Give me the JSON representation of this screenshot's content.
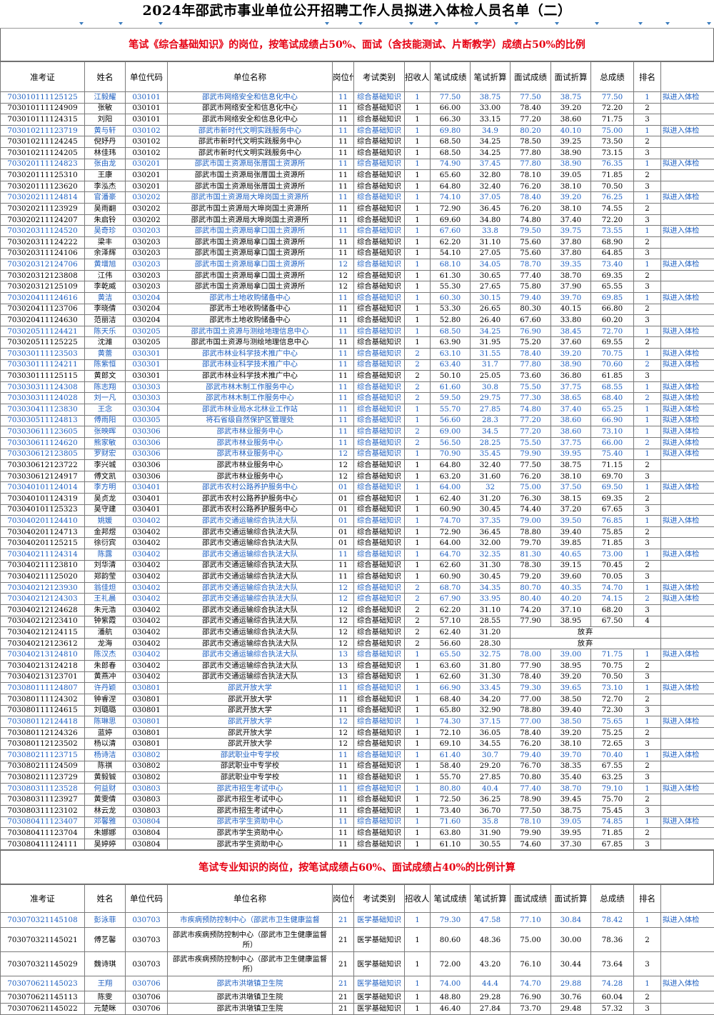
{
  "title": "2024年邵武市事业单位公开招聘工作人员拟进入体检人员名单（二）",
  "section1_note": "笔试《综合基础知识》的岗位，按笔试成绩占50%、面试（含技能测试、片断教学）成绩占50%的比例",
  "section2_note": "笔试专业知识的岗位，按笔试成绩占60%、面试成绩占40%的比例计算",
  "headers": [
    "准考证",
    "姓名",
    "单位代码",
    "单位名称",
    "岗位代码",
    "考试类别",
    "招收人数",
    "笔试成绩",
    "笔试折算",
    "面试成绩",
    "面试折算",
    "总成绩",
    "排名",
    ""
  ],
  "result_label": "拟进入体检",
  "absent_label": "放弃",
  "colors": {
    "highlight": "#1e5fc0",
    "notice": "#e60012",
    "filter_arrow": "#3a7bbd"
  },
  "section1_rows": [
    [
      "703010111125125",
      "江毅耀",
      "030101",
      "邵武市网络安全和信息化中心",
      "11",
      "综合基础知识",
      "1",
      "77.50",
      "38.75",
      "77.50",
      "38.75",
      "77.50",
      "1",
      "拟进入体检"
    ],
    [
      "703010111124909",
      "张敏",
      "030101",
      "邵武市网络安全和信息化中心",
      "11",
      "综合基础知识",
      "1",
      "66.00",
      "33.00",
      "78.40",
      "39.20",
      "72.20",
      "2",
      ""
    ],
    [
      "703010111124315",
      "刘阳",
      "030101",
      "邵武市网络安全和信息化中心",
      "11",
      "综合基础知识",
      "1",
      "66.30",
      "33.15",
      "77.20",
      "38.60",
      "71.75",
      "3",
      ""
    ],
    [
      "703010211123719",
      "黄与轩",
      "030102",
      "邵武市新时代文明实践服务中心",
      "11",
      "综合基础知识",
      "1",
      "69.80",
      "34.9",
      "80.20",
      "40.10",
      "75.00",
      "1",
      "拟进入体检"
    ],
    [
      "703010211124245",
      "倪妤丹",
      "030102",
      "邵武市新时代文明实践服务中心",
      "11",
      "综合基础知识",
      "1",
      "68.50",
      "34.25",
      "78.50",
      "39.25",
      "73.50",
      "2",
      ""
    ],
    [
      "703010211124205",
      "林佳玮",
      "030102",
      "邵武市新时代文明实践服务中心",
      "11",
      "综合基础知识",
      "1",
      "68.50",
      "34.25",
      "77.80",
      "38.90",
      "73.15",
      "3",
      ""
    ],
    [
      "703020111124823",
      "张由龙",
      "030201",
      "邵武市国土资源局张厝国土资源所",
      "11",
      "综合基础知识",
      "1",
      "74.90",
      "37.45",
      "77.80",
      "38.90",
      "76.35",
      "1",
      "拟进入体检"
    ],
    [
      "703020111125310",
      "王康",
      "030201",
      "邵武市国土资源局张厝国土资源所",
      "11",
      "综合基础知识",
      "1",
      "65.60",
      "32.80",
      "78.10",
      "39.05",
      "71.85",
      "2",
      ""
    ],
    [
      "703020111123620",
      "李泓杰",
      "030201",
      "邵武市国土资源局张厝国土资源所",
      "11",
      "综合基础知识",
      "1",
      "64.80",
      "32.40",
      "76.20",
      "38.10",
      "70.50",
      "3",
      ""
    ],
    [
      "703020211124814",
      "官潘豪",
      "030202",
      "邵武市国土资源局大埠岗国土资源所",
      "11",
      "综合基础知识",
      "1",
      "74.10",
      "37.05",
      "78.40",
      "39.20",
      "76.25",
      "1",
      "拟进入体检"
    ],
    [
      "703020211123929",
      "吴雨翻",
      "030202",
      "邵武市国土资源局大埠岗国土资源所",
      "11",
      "综合基础知识",
      "1",
      "72.90",
      "36.45",
      "76.20",
      "38.10",
      "74.55",
      "2",
      ""
    ],
    [
      "703020211124207",
      "朱启铃",
      "030202",
      "邵武市国土资源局大埠岗国土资源所",
      "11",
      "综合基础知识",
      "1",
      "69.60",
      "34.80",
      "74.80",
      "37.40",
      "72.20",
      "3",
      ""
    ],
    [
      "703020311124520",
      "吴奇珍",
      "030203",
      "邵武市国土资源局拿口国土资源所",
      "11",
      "综合基础知识",
      "1",
      "67.60",
      "33.8",
      "79.50",
      "39.75",
      "73.55",
      "1",
      "拟进入体检"
    ],
    [
      "703020311124222",
      "梁丰",
      "030203",
      "邵武市国土资源局拿口国土资源所",
      "11",
      "综合基础知识",
      "1",
      "62.20",
      "31.10",
      "75.60",
      "37.80",
      "68.90",
      "2",
      ""
    ],
    [
      "703020311124106",
      "余泽辉",
      "030203",
      "邵武市国土资源局拿口国土资源所",
      "11",
      "综合基础知识",
      "1",
      "54.10",
      "27.05",
      "75.60",
      "37.80",
      "64.85",
      "3",
      ""
    ],
    [
      "703020312124706",
      "黄增旭",
      "030203",
      "邵武市国土资源局拿口国土资源所",
      "12",
      "综合基础知识",
      "1",
      "68.10",
      "34.05",
      "78.70",
      "39.35",
      "73.40",
      "1",
      "拟进入体检"
    ],
    [
      "703020312123808",
      "江伟",
      "030203",
      "邵武市国土资源局拿口国土资源所",
      "12",
      "综合基础知识",
      "1",
      "61.30",
      "30.65",
      "77.40",
      "38.70",
      "69.35",
      "2",
      ""
    ],
    [
      "703020312125109",
      "李乾威",
      "030203",
      "邵武市国土资源局拿口国土资源所",
      "12",
      "综合基础知识",
      "1",
      "55.30",
      "27.65",
      "75.80",
      "37.90",
      "65.55",
      "3",
      ""
    ],
    [
      "703020411124616",
      "黄洁",
      "030204",
      "邵武市土地收购储备中心",
      "11",
      "综合基础知识",
      "1",
      "60.30",
      "30.15",
      "79.40",
      "39.70",
      "69.85",
      "1",
      "拟进入体检"
    ],
    [
      "703020411123706",
      "李晓倩",
      "030204",
      "邵武市土地收购储备中心",
      "11",
      "综合基础知识",
      "1",
      "53.30",
      "26.65",
      "80.30",
      "40.15",
      "66.80",
      "2",
      ""
    ],
    [
      "703020411124630",
      "范丽洁",
      "030204",
      "邵武市土地收购储备中心",
      "11",
      "综合基础知识",
      "1",
      "52.80",
      "26.40",
      "67.60",
      "33.80",
      "60.20",
      "3",
      ""
    ],
    [
      "703020511124421",
      "陈天乐",
      "030205",
      "邵武市国土资源与测绘地理信息中心",
      "11",
      "综合基础知识",
      "1",
      "68.50",
      "34.25",
      "76.90",
      "38.45",
      "72.70",
      "1",
      "拟进入体检"
    ],
    [
      "703020511125225",
      "沈濰",
      "030205",
      "邵武市国土资源与测绘地理信息中心",
      "11",
      "综合基础知识",
      "1",
      "63.90",
      "31.95",
      "75.20",
      "37.60",
      "69.55",
      "2",
      ""
    ],
    [
      "703030111123503",
      "黄蕾",
      "030301",
      "邵武市林业科学技术推广中心",
      "11",
      "综合基础知识",
      "2",
      "63.10",
      "31.55",
      "78.40",
      "39.20",
      "70.75",
      "1",
      "拟进入体检"
    ],
    [
      "703030111124211",
      "陈紫恒",
      "030301",
      "邵武市林业科学技术推广中心",
      "11",
      "综合基础知识",
      "2",
      "63.40",
      "31.7",
      "77.80",
      "38.90",
      "70.60",
      "2",
      "拟进入体检"
    ],
    [
      "703030111125115",
      "黄郎文",
      "030301",
      "邵武市林业科学技术推广中心",
      "11",
      "综合基础知识",
      "2",
      "50.10",
      "25.05",
      "73.60",
      "36.80",
      "61.85",
      "3",
      ""
    ],
    [
      "703030311124308",
      "陈志翔",
      "030303",
      "邵武市林木制工作服务中心",
      "11",
      "综合基础知识",
      "2",
      "61.60",
      "30.8",
      "75.50",
      "37.75",
      "68.55",
      "1",
      "拟进入体检"
    ],
    [
      "703030311124028",
      "刘一凡",
      "030303",
      "邵武市林木制工作服务中心",
      "11",
      "综合基础知识",
      "2",
      "59.50",
      "29.75",
      "77.30",
      "38.65",
      "68.40",
      "2",
      "拟进入体检"
    ],
    [
      "703030411123830",
      "王念",
      "030304",
      "邵武市林业局水北林业工作站",
      "11",
      "综合基础知识",
      "1",
      "55.70",
      "27.85",
      "74.80",
      "37.40",
      "65.25",
      "1",
      "拟进入体检"
    ],
    [
      "703030511124813",
      "傅雨阳",
      "030305",
      "将石省级自然保护区管理处",
      "11",
      "综合基础知识",
      "1",
      "56.60",
      "28.3",
      "77.20",
      "38.60",
      "66.90",
      "1",
      "拟进入体检"
    ],
    [
      "703030611123605",
      "张映晖",
      "030306",
      "邵武市林业服务中心",
      "11",
      "综合基础知识",
      "2",
      "69.00",
      "34.5",
      "77.20",
      "38.60",
      "73.10",
      "1",
      "拟进入体检"
    ],
    [
      "703030611124620",
      "熊家敏",
      "030306",
      "邵武市林业服务中心",
      "11",
      "综合基础知识",
      "2",
      "56.50",
      "28.25",
      "75.50",
      "37.75",
      "66.00",
      "2",
      "拟进入体检"
    ],
    [
      "703030612123805",
      "罗财宏",
      "030306",
      "邵武市林业服务中心",
      "12",
      "综合基础知识",
      "1",
      "70.90",
      "35.45",
      "79.90",
      "39.95",
      "75.40",
      "1",
      "拟进入体检"
    ],
    [
      "703030612123722",
      "李兴城",
      "030306",
      "邵武市林业服务中心",
      "12",
      "综合基础知识",
      "1",
      "64.80",
      "32.40",
      "77.50",
      "38.75",
      "71.15",
      "2",
      ""
    ],
    [
      "703030612124917",
      "傅文凯",
      "030306",
      "邵武市林业服务中心",
      "12",
      "综合基础知识",
      "1",
      "63.20",
      "31.60",
      "76.20",
      "38.10",
      "69.70",
      "3",
      ""
    ],
    [
      "703040101124014",
      "李方明",
      "030401",
      "邵武市农村公路养护服务中心",
      "01",
      "综合基础知识",
      "1",
      "64.00",
      "32",
      "75.00",
      "37.50",
      "69.50",
      "1",
      "拟进入体检"
    ],
    [
      "703040101124319",
      "吴贞龙",
      "030401",
      "邵武市农村公路养护服务中心",
      "01",
      "综合基础知识",
      "1",
      "62.40",
      "31.20",
      "76.30",
      "38.15",
      "69.35",
      "2",
      ""
    ],
    [
      "703040101125323",
      "吴守建",
      "030401",
      "邵武市农村公路养护服务中心",
      "01",
      "综合基础知识",
      "1",
      "60.90",
      "30.45",
      "74.40",
      "37.20",
      "67.65",
      "3",
      ""
    ],
    [
      "703040201124410",
      "姚媛",
      "030402",
      "邵武市交通运输综合执法大队",
      "01",
      "综合基础知识",
      "1",
      "74.70",
      "37.35",
      "79.00",
      "39.50",
      "76.85",
      "1",
      "拟进入体检"
    ],
    [
      "703040201124713",
      "金邦煜",
      "030402",
      "邵武市交通运输综合执法大队",
      "01",
      "综合基础知识",
      "1",
      "72.90",
      "36.45",
      "78.80",
      "39.40",
      "75.85",
      "2",
      ""
    ],
    [
      "703040201125215",
      "徐衍宾",
      "030402",
      "邵武市交通运输综合执法大队",
      "01",
      "综合基础知识",
      "1",
      "64.00",
      "32.00",
      "79.70",
      "39.85",
      "71.85",
      "3",
      ""
    ],
    [
      "703040211124314",
      "陈露",
      "030402",
      "邵武市交通运输综合执法大队",
      "11",
      "综合基础知识",
      "1",
      "64.70",
      "32.35",
      "81.30",
      "40.65",
      "73.00",
      "1",
      "拟进入体检"
    ],
    [
      "703040211123810",
      "刘华清",
      "030402",
      "邵武市交通运输综合执法大队",
      "11",
      "综合基础知识",
      "1",
      "62.60",
      "31.30",
      "78.30",
      "39.15",
      "70.45",
      "2",
      ""
    ],
    [
      "703040211125020",
      "郑韵莹",
      "030402",
      "邵武市交通运输综合执法大队",
      "11",
      "综合基础知识",
      "1",
      "60.90",
      "30.45",
      "79.20",
      "39.60",
      "70.05",
      "3",
      ""
    ],
    [
      "703040212123930",
      "翁佳炟",
      "030402",
      "邵武市交通运输综合执法大队",
      "12",
      "综合基础知识",
      "2",
      "68.70",
      "34.35",
      "80.70",
      "40.35",
      "74.70",
      "1",
      "拟进入体检"
    ],
    [
      "703040212124303",
      "王礼晨",
      "030402",
      "邵武市交通运输综合执法大队",
      "12",
      "综合基础知识",
      "2",
      "67.90",
      "33.95",
      "80.40",
      "40.20",
      "74.15",
      "2",
      "拟进入体检"
    ],
    [
      "703040212124628",
      "朱元浩",
      "030402",
      "邵武市交通运输综合执法大队",
      "12",
      "综合基础知识",
      "2",
      "62.20",
      "31.10",
      "74.20",
      "37.10",
      "68.20",
      "3",
      ""
    ],
    [
      "703040212123410",
      "钟紫霞",
      "030402",
      "邵武市交通运输综合执法大队",
      "12",
      "综合基础知识",
      "2",
      "57.10",
      "28.55",
      "77.90",
      "38.95",
      "67.50",
      "4",
      ""
    ],
    [
      "703040212124115",
      "潘航",
      "030402",
      "邵武市交通运输综合执法大队",
      "12",
      "综合基础知识",
      "2",
      "62.40",
      "31.20",
      "",
      "",
      "放弃",
      "",
      ""
    ],
    [
      "703040212123612",
      "龙海",
      "030402",
      "邵武市交通运输综合执法大队",
      "12",
      "综合基础知识",
      "2",
      "56.60",
      "28.30",
      "",
      "",
      "放弃",
      "",
      ""
    ],
    [
      "703040213124810",
      "陈汉杰",
      "030402",
      "邵武市交通运输综合执法大队",
      "13",
      "综合基础知识",
      "1",
      "65.50",
      "32.75",
      "78.00",
      "39.00",
      "71.75",
      "1",
      "拟进入体检"
    ],
    [
      "703040213124218",
      "朱郎春",
      "030402",
      "邵武市交通运输综合执法大队",
      "13",
      "综合基础知识",
      "1",
      "63.60",
      "31.80",
      "77.90",
      "38.95",
      "70.75",
      "2",
      ""
    ],
    [
      "703040213123701",
      "黄燕冲",
      "030402",
      "邵武市交通运输综合执法大队",
      "13",
      "综合基础知识",
      "1",
      "62.60",
      "31.30",
      "78.40",
      "39.20",
      "70.50",
      "3",
      ""
    ],
    [
      "703080111124807",
      "许丹颖",
      "030801",
      "邵武开放大学",
      "11",
      "综合基础知识",
      "1",
      "66.90",
      "33.45",
      "79.30",
      "39.65",
      "73.10",
      "1",
      "拟进入体检"
    ],
    [
      "703080111124302",
      "钟睿涅",
      "030801",
      "邵武开放大学",
      "11",
      "综合基础知识",
      "1",
      "68.40",
      "34.20",
      "77.00",
      "38.50",
      "72.70",
      "2",
      ""
    ],
    [
      "703080111124615",
      "刘璐璐",
      "030801",
      "邵武开放大学",
      "11",
      "综合基础知识",
      "1",
      "65.80",
      "32.90",
      "78.80",
      "39.40",
      "72.30",
      "3",
      ""
    ],
    [
      "703080112124418",
      "陈琳思",
      "030801",
      "邵武开放大学",
      "12",
      "综合基础知识",
      "1",
      "74.30",
      "37.15",
      "77.00",
      "38.50",
      "75.65",
      "1",
      "拟进入体检"
    ],
    [
      "703080112124326",
      "蓝婷",
      "030801",
      "邵武开放大学",
      "12",
      "综合基础知识",
      "1",
      "72.10",
      "36.05",
      "78.40",
      "39.20",
      "75.25",
      "2",
      ""
    ],
    [
      "703080112123502",
      "杨以清",
      "030801",
      "邵武开放大学",
      "12",
      "综合基础知识",
      "1",
      "69.10",
      "34.55",
      "76.20",
      "38.10",
      "72.65",
      "3",
      ""
    ],
    [
      "703080211123715",
      "杨诗洁",
      "030802",
      "邵武职业中专学校",
      "11",
      "综合基础知识",
      "1",
      "61.40",
      "30.7",
      "79.40",
      "39.70",
      "70.40",
      "1",
      "拟进入体检"
    ],
    [
      "703080211124509",
      "陈祺",
      "030802",
      "邵武职业中专学校",
      "11",
      "综合基础知识",
      "1",
      "58.40",
      "29.20",
      "76.70",
      "38.35",
      "67.55",
      "2",
      ""
    ],
    [
      "703080211123729",
      "黄毅铖",
      "030802",
      "邵武职业中专学校",
      "11",
      "综合基础知识",
      "1",
      "55.70",
      "27.85",
      "70.80",
      "35.40",
      "63.25",
      "3",
      ""
    ],
    [
      "703080311123528",
      "何益财",
      "030803",
      "邵武市招生考试中心",
      "11",
      "综合基础知识",
      "1",
      "80.80",
      "40.4",
      "77.40",
      "38.70",
      "79.10",
      "1",
      "拟进入体检"
    ],
    [
      "703080311123927",
      "黄雯倩",
      "030803",
      "邵武市招生考试中心",
      "11",
      "综合基础知识",
      "1",
      "72.50",
      "36.25",
      "78.90",
      "39.45",
      "75.70",
      "2",
      ""
    ],
    [
      "703080311123102",
      "林云龙",
      "030803",
      "邵武市招生考试中心",
      "11",
      "综合基础知识",
      "1",
      "73.40",
      "36.70",
      "77.50",
      "38.75",
      "75.45",
      "3",
      ""
    ],
    [
      "703080411123407",
      "邓馨雅",
      "030804",
      "邵武市学生资助中心",
      "11",
      "综合基础知识",
      "1",
      "71.60",
      "35.8",
      "78.10",
      "39.05",
      "74.85",
      "1",
      "拟进入体检"
    ],
    [
      "703080411123704",
      "朱娜娜",
      "030804",
      "邵武市学生资助中心",
      "11",
      "综合基础知识",
      "1",
      "63.80",
      "31.90",
      "79.90",
      "39.95",
      "71.85",
      "2",
      ""
    ],
    [
      "703080411124111",
      "吴婷婷",
      "030804",
      "邵武市学生资助中心",
      "11",
      "综合基础知识",
      "1",
      "61.10",
      "30.55",
      "74.60",
      "37.30",
      "67.85",
      "3",
      ""
    ]
  ],
  "section2_rows": [
    [
      "703070321145108",
      "彭泳菲",
      "030703",
      "市疾病预防控制中心（邵武市卫生健康监督",
      "21",
      "医学基础知识",
      "1",
      "79.30",
      "47.58",
      "77.10",
      "30.84",
      "78.42",
      "1",
      "拟进入体检"
    ],
    [
      "703070321145021",
      "傅艺馨",
      "030703",
      "邵武市疾病预防控制中心（邵武市卫生健康监督所）",
      "21",
      "医学基础知识",
      "1",
      "80.60",
      "48.36",
      "75.00",
      "30.00",
      "78.36",
      "2",
      ""
    ],
    [
      "703070321145029",
      "魏诗琪",
      "030703",
      "邵武市疾病预防控制中心（邵武市卫生健康监督所）",
      "21",
      "医学基础知识",
      "1",
      "72.00",
      "43.20",
      "76.10",
      "30.44",
      "73.64",
      "3",
      ""
    ],
    [
      "703070621145023",
      "王翔",
      "030706",
      "邵武市洪墩镇卫生院",
      "21",
      "医学基础知识",
      "1",
      "74.00",
      "44.4",
      "74.70",
      "29.88",
      "74.28",
      "1",
      "拟进入体检"
    ],
    [
      "703070621145113",
      "陈雯",
      "030706",
      "邵武市洪墩镇卫生院",
      "21",
      "医学基础知识",
      "1",
      "48.80",
      "29.28",
      "76.90",
      "30.76",
      "60.04",
      "2",
      ""
    ],
    [
      "703070621145022",
      "元楚眯",
      "030706",
      "邵武市洪墩镇卫生院",
      "21",
      "医学基础知识",
      "1",
      "46.40",
      "27.84",
      "73.70",
      "29.48",
      "57.32",
      "3",
      ""
    ]
  ]
}
